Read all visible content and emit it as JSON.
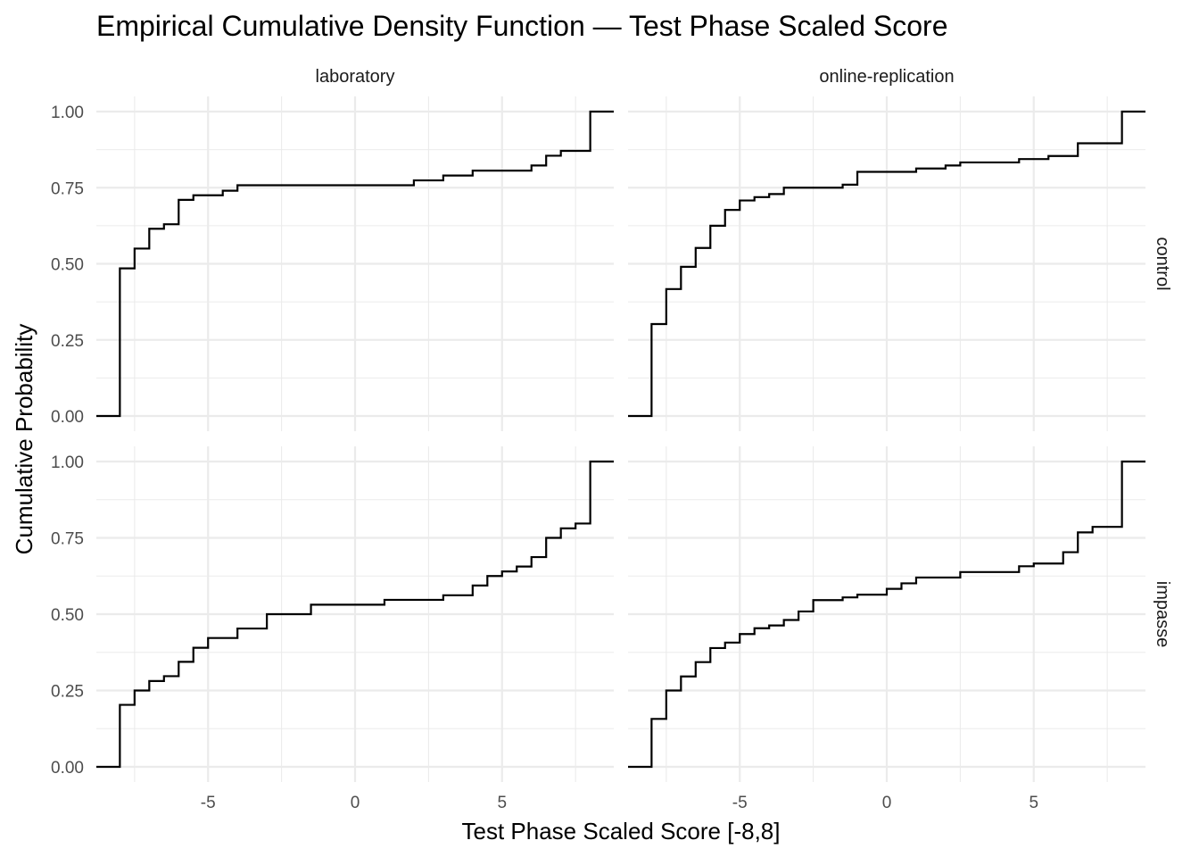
{
  "chart_data": {
    "type": "line",
    "subtype": "ecdf-step",
    "title": "Empirical Cumulative Density Function — Test Phase Scaled Score",
    "xlabel": "Test Phase Scaled Score [-8,8]",
    "ylabel": "Cumulative Probability",
    "xlim": [
      -8.8,
      8.8
    ],
    "ylim": [
      0,
      1
    ],
    "x_ticks": [
      -5,
      0,
      5
    ],
    "x_tick_labels": [
      "-5",
      "0",
      "5"
    ],
    "y_ticks": [
      0,
      0.25,
      0.5,
      0.75,
      1
    ],
    "y_tick_labels": [
      "0.00",
      "0.25",
      "0.50",
      "0.75",
      "1.00"
    ],
    "grid": true,
    "legend": "none",
    "columns": [
      "laboratory",
      "online-replication"
    ],
    "rows": [
      "control",
      "impasse"
    ],
    "panels": [
      {
        "column": "laboratory",
        "row": "control",
        "steps": [
          [
            -8,
            0.485
          ],
          [
            -7.5,
            0.55
          ],
          [
            -7,
            0.615
          ],
          [
            -6.5,
            0.63
          ],
          [
            -6,
            0.71
          ],
          [
            -5.5,
            0.725
          ],
          [
            -4.5,
            0.74
          ],
          [
            -4,
            0.758
          ],
          [
            2,
            0.774
          ],
          [
            3,
            0.79
          ],
          [
            4,
            0.806
          ],
          [
            6,
            0.823
          ],
          [
            6.5,
            0.855
          ],
          [
            7,
            0.871
          ],
          [
            8,
            1.0
          ]
        ]
      },
      {
        "column": "online-replication",
        "row": "control",
        "steps": [
          [
            -8,
            0.302
          ],
          [
            -7.5,
            0.417
          ],
          [
            -7,
            0.49
          ],
          [
            -6.5,
            0.552
          ],
          [
            -6,
            0.625
          ],
          [
            -5.5,
            0.677
          ],
          [
            -5,
            0.708
          ],
          [
            -4.5,
            0.719
          ],
          [
            -4,
            0.729
          ],
          [
            -3.5,
            0.75
          ],
          [
            -1.5,
            0.76
          ],
          [
            -1,
            0.802
          ],
          [
            1,
            0.813
          ],
          [
            2,
            0.823
          ],
          [
            2.5,
            0.833
          ],
          [
            4.5,
            0.844
          ],
          [
            5.5,
            0.854
          ],
          [
            6.5,
            0.896
          ],
          [
            8,
            1.0
          ]
        ]
      },
      {
        "column": "laboratory",
        "row": "impasse",
        "steps": [
          [
            -8,
            0.203
          ],
          [
            -7.5,
            0.25
          ],
          [
            -7,
            0.281
          ],
          [
            -6.5,
            0.297
          ],
          [
            -6,
            0.344
          ],
          [
            -5.5,
            0.39
          ],
          [
            -5,
            0.422
          ],
          [
            -4,
            0.453
          ],
          [
            -3,
            0.5
          ],
          [
            -1.5,
            0.531
          ],
          [
            1,
            0.547
          ],
          [
            3,
            0.562
          ],
          [
            4,
            0.594
          ],
          [
            4.5,
            0.625
          ],
          [
            5,
            0.64
          ],
          [
            5.5,
            0.656
          ],
          [
            6,
            0.687
          ],
          [
            6.5,
            0.75
          ],
          [
            7,
            0.781
          ],
          [
            7.5,
            0.797
          ],
          [
            8,
            1.0
          ]
        ]
      },
      {
        "column": "online-replication",
        "row": "impasse",
        "steps": [
          [
            -8,
            0.157
          ],
          [
            -7.5,
            0.25
          ],
          [
            -7,
            0.296
          ],
          [
            -6.5,
            0.343
          ],
          [
            -6,
            0.389
          ],
          [
            -5.5,
            0.407
          ],
          [
            -5,
            0.435
          ],
          [
            -4.5,
            0.454
          ],
          [
            -4,
            0.463
          ],
          [
            -3.5,
            0.481
          ],
          [
            -3,
            0.509
          ],
          [
            -2.5,
            0.546
          ],
          [
            -1.5,
            0.555
          ],
          [
            -1,
            0.564
          ],
          [
            0,
            0.583
          ],
          [
            0.5,
            0.601
          ],
          [
            1,
            0.62
          ],
          [
            2.5,
            0.638
          ],
          [
            4.5,
            0.657
          ],
          [
            5,
            0.666
          ],
          [
            6,
            0.703
          ],
          [
            6.5,
            0.768
          ],
          [
            7,
            0.786
          ],
          [
            8,
            1.0
          ]
        ]
      }
    ]
  }
}
